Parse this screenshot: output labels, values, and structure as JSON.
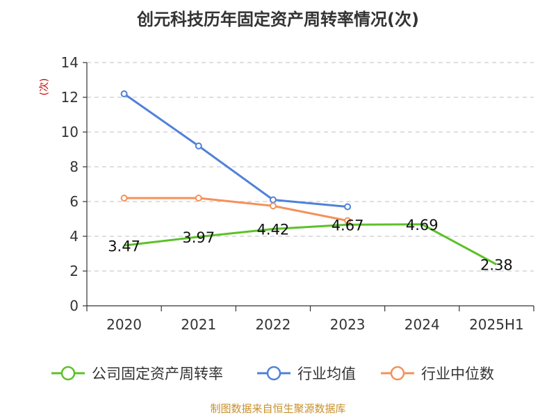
{
  "chart_data": {
    "type": "line",
    "title": "创元科技历年固定资产周转率情况(次)",
    "ylabel": "(次)",
    "xlabel": "",
    "categories": [
      "2020",
      "2021",
      "2022",
      "2023",
      "2024",
      "2025H1"
    ],
    "ylim": [
      0,
      14
    ],
    "yticks": [
      "0",
      "2",
      "4",
      "6",
      "8",
      "10",
      "12",
      "14"
    ],
    "grid": true,
    "legend_position": "bottom",
    "series": [
      {
        "name": "公司固定资产周转率",
        "color": "#5cc129",
        "values": [
          3.47,
          3.97,
          4.42,
          4.67,
          4.69,
          2.38
        ],
        "labels": [
          "3.47",
          "3.97",
          "4.42",
          "4.67",
          "4.69",
          "2.38"
        ]
      },
      {
        "name": "行业均值",
        "color": "#4f81d9",
        "values": [
          12.2,
          9.2,
          6.1,
          5.7,
          null,
          null
        ]
      },
      {
        "name": "行业中位数",
        "color": "#f4915a",
        "values": [
          6.2,
          6.2,
          5.75,
          4.9,
          null,
          null
        ]
      }
    ]
  },
  "source": "制图数据来自恒生聚源数据库"
}
